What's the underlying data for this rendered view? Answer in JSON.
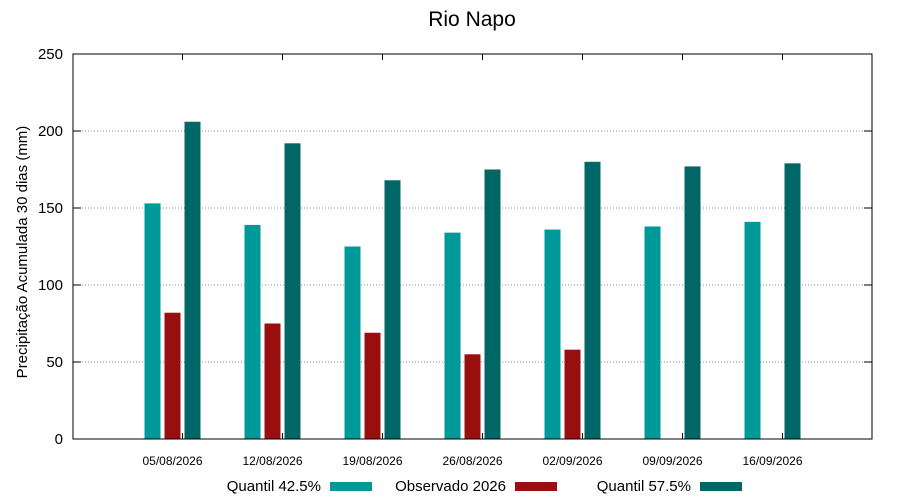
{
  "chart_data": {
    "type": "bar",
    "title": "Rio Napo",
    "xlabel": "",
    "ylabel": "Precipitação Acumulada 30 dias (mm)",
    "ylim": [
      0,
      250
    ],
    "yticks": [
      0,
      50,
      100,
      150,
      200,
      250
    ],
    "grid": "horizontal-dotted",
    "legend_position": "bottom",
    "categories": [
      "05/08/2026",
      "12/08/2026",
      "19/08/2026",
      "26/08/2026",
      "02/09/2026",
      "09/09/2026",
      "16/09/2026"
    ],
    "series": [
      {
        "name": "Quantil 42.5%",
        "color": "#009999",
        "values": [
          153,
          139,
          125,
          134,
          136,
          138,
          141
        ]
      },
      {
        "name": "Observado 2026",
        "color": "#990f0f",
        "values": [
          82,
          75,
          69,
          55,
          58,
          null,
          null
        ]
      },
      {
        "name": "Quantil 57.5%",
        "color": "#006666",
        "values": [
          206,
          192,
          168,
          175,
          180,
          177,
          179
        ]
      }
    ]
  }
}
